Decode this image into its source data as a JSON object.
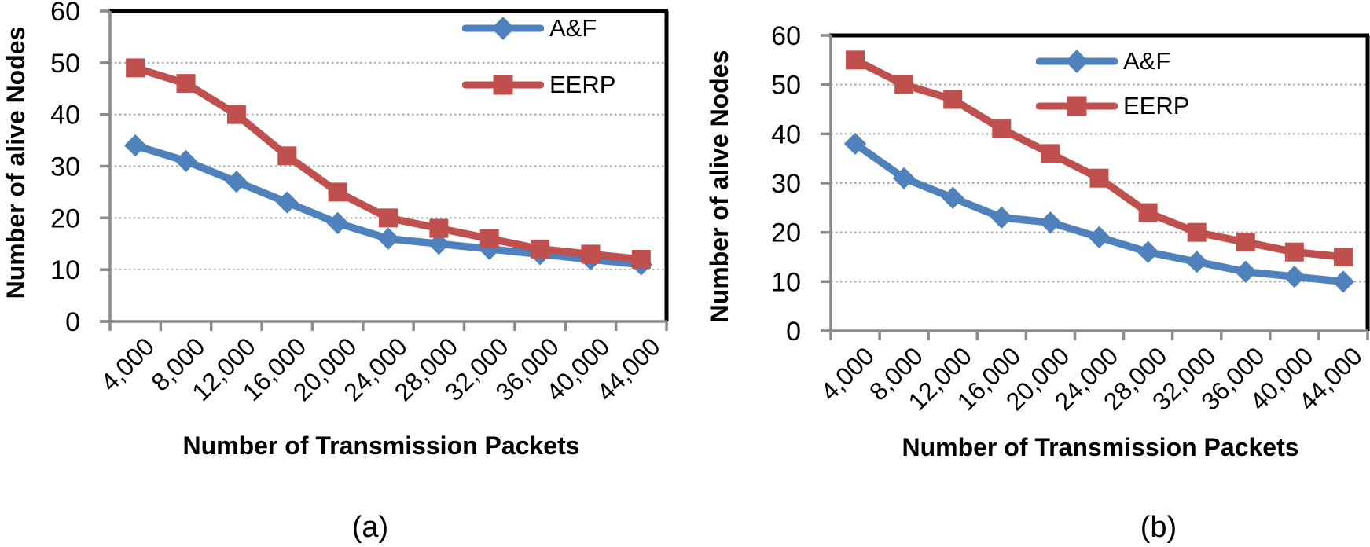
{
  "figure": {
    "background": "#ffffff",
    "captions": {
      "a": "(a)",
      "b": "(b)"
    }
  },
  "palette": {
    "af_blue": "#4f81bd",
    "eerp_red": "#c0504d",
    "gridline_gray": "#a6a6a6",
    "axis_gray": "#8a8a8a",
    "plot_border_black": "#000000",
    "text_black": "#000000"
  },
  "chart_data": [
    {
      "type": "line",
      "panel": "(a)",
      "title": "",
      "xlabel": "Number of Transmission Packets",
      "ylabel": "Number of alive Nodes",
      "categories": [
        "4,000",
        "8,000",
        "12,000",
        "16,000",
        "20,000",
        "24,000",
        "28,000",
        "32,000",
        "36,000",
        "40,000",
        "44,000"
      ],
      "series": [
        {
          "name": "A&F",
          "marker": "diamond",
          "color": "#4f81bd",
          "values": [
            34,
            31,
            27,
            23,
            19,
            16,
            15,
            14,
            13,
            12,
            11
          ]
        },
        {
          "name": "EERP",
          "marker": "square",
          "color": "#c0504d",
          "values": [
            49,
            46,
            40,
            32,
            25,
            20,
            18,
            16,
            14,
            13,
            12
          ]
        }
      ],
      "ylim": [
        0,
        60
      ],
      "yticks": [
        0,
        10,
        20,
        30,
        40,
        50,
        60
      ],
      "grid": "horizontal-dotted",
      "legend_position": "inside-top-right"
    },
    {
      "type": "line",
      "panel": "(b)",
      "title": "",
      "xlabel": "Number of Transmission Packets",
      "ylabel": "Number of alive Nodes",
      "categories": [
        "4,000",
        "8,000",
        "12,000",
        "16,000",
        "20,000",
        "24,000",
        "28,000",
        "32,000",
        "36,000",
        "40,000",
        "44,000"
      ],
      "series": [
        {
          "name": "A&F",
          "marker": "diamond",
          "color": "#4f81bd",
          "values": [
            38,
            31,
            27,
            23,
            22,
            19,
            16,
            14,
            12,
            11,
            10
          ]
        },
        {
          "name": "EERP",
          "marker": "square",
          "color": "#c0504d",
          "values": [
            55,
            50,
            47,
            41,
            36,
            31,
            24,
            20,
            18,
            16,
            15
          ]
        }
      ],
      "ylim": [
        0,
        60
      ],
      "yticks": [
        0,
        10,
        20,
        30,
        40,
        50,
        60
      ],
      "grid": "horizontal-dotted",
      "legend_position": "inside-top-right"
    }
  ]
}
